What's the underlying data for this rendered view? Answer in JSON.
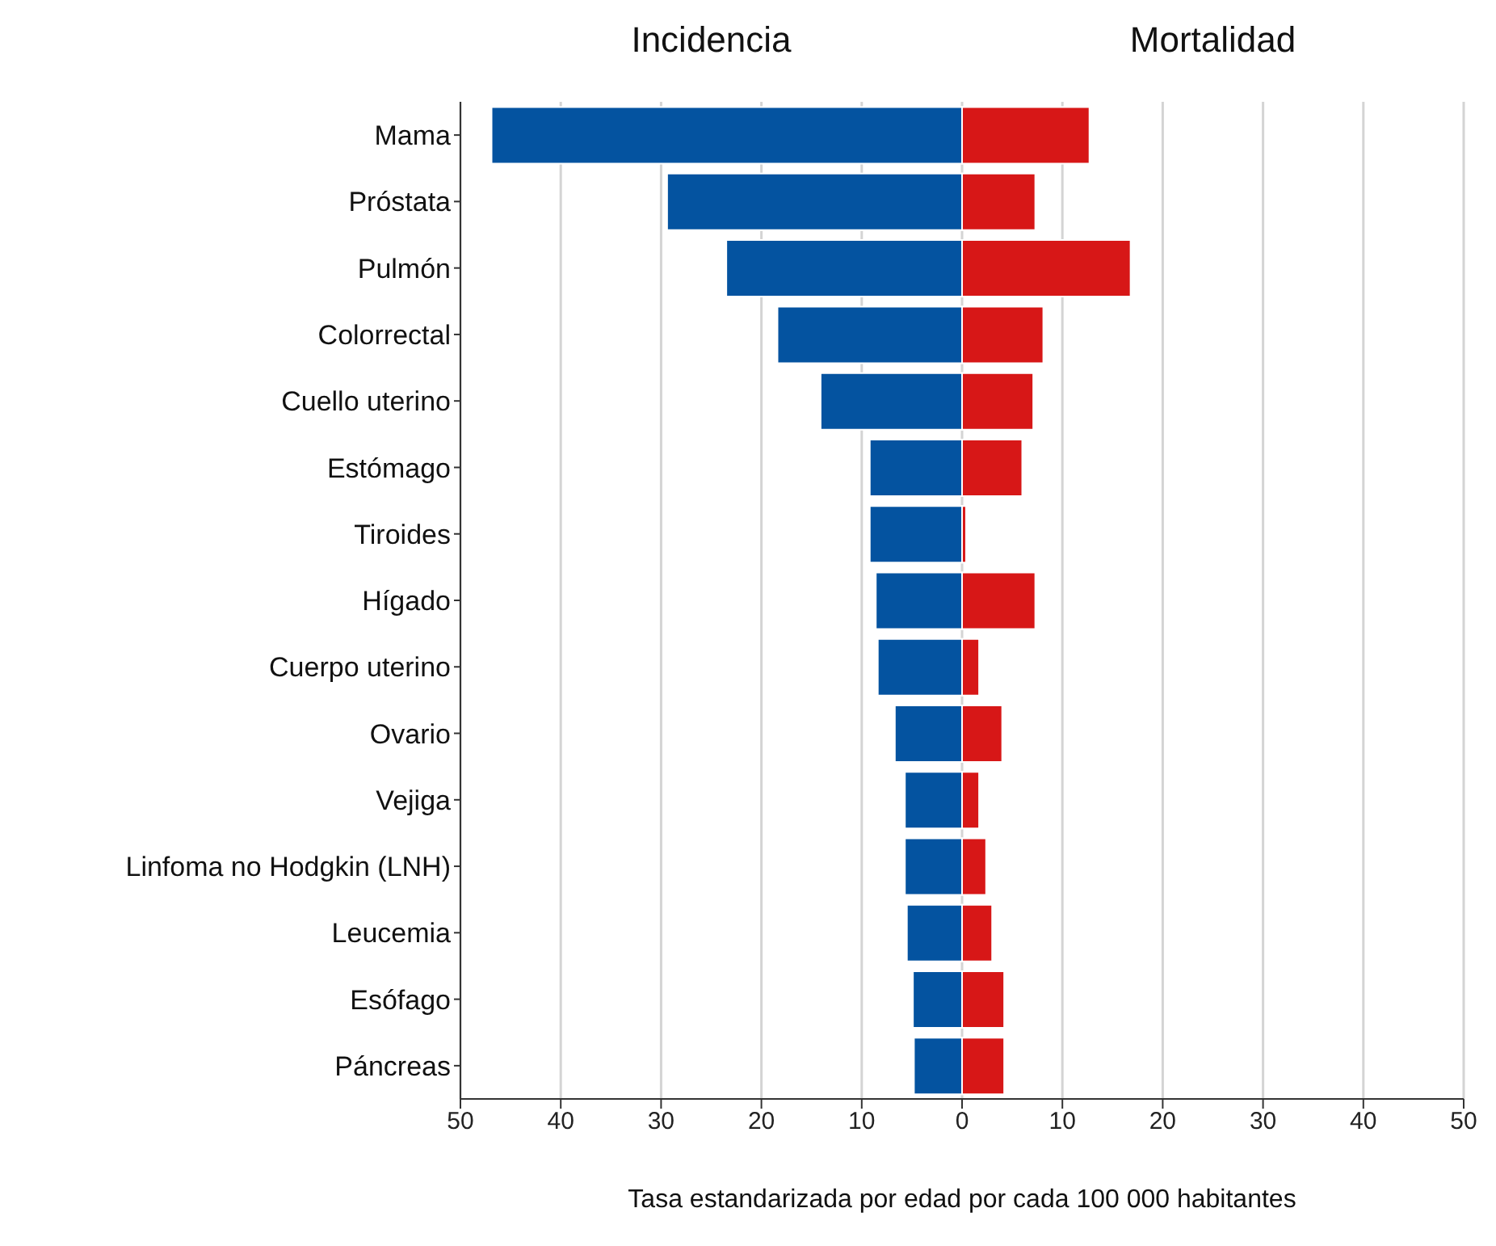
{
  "chart_data": {
    "type": "bar",
    "orientation": "horizontal",
    "stacked": true,
    "xlabel": "Tasa estandarizada por edad por cada 100 000 habitantes",
    "categories": [
      "Mama",
      "Próstata",
      "Pulmón",
      "Colorrectal",
      "Cuello uterino",
      "Estómago",
      "Tiroides",
      "Hígado",
      "Cuerpo uterino",
      "Ovario",
      "Vejiga",
      "Linfoma no Hodgkin (LNH)",
      "Leucemia",
      "Esófago",
      "Páncreas"
    ],
    "series": [
      {
        "name": "Incidencia",
        "color": "#0453a0",
        "values": [
          -46.9,
          -29.4,
          -23.5,
          -18.4,
          -14.1,
          -9.2,
          -9.2,
          -8.6,
          -8.4,
          -6.7,
          -5.7,
          -5.7,
          -5.5,
          -4.9,
          -4.8
        ]
      },
      {
        "name": "Mortalidad",
        "color": "#d71717",
        "values": [
          12.7,
          7.3,
          16.8,
          8.1,
          7.1,
          6.0,
          0.4,
          7.3,
          1.7,
          4.0,
          1.7,
          2.4,
          3.0,
          4.2,
          4.2
        ]
      }
    ],
    "xlim": [
      -50,
      50
    ],
    "xticks": [
      {
        "value": -50,
        "label": "50"
      },
      {
        "value": -40,
        "label": "40"
      },
      {
        "value": -30,
        "label": "30"
      },
      {
        "value": -20,
        "label": "20"
      },
      {
        "value": -10,
        "label": "10"
      },
      0,
      10,
      20,
      30,
      40,
      50
    ],
    "grid": "x",
    "legend": false
  }
}
